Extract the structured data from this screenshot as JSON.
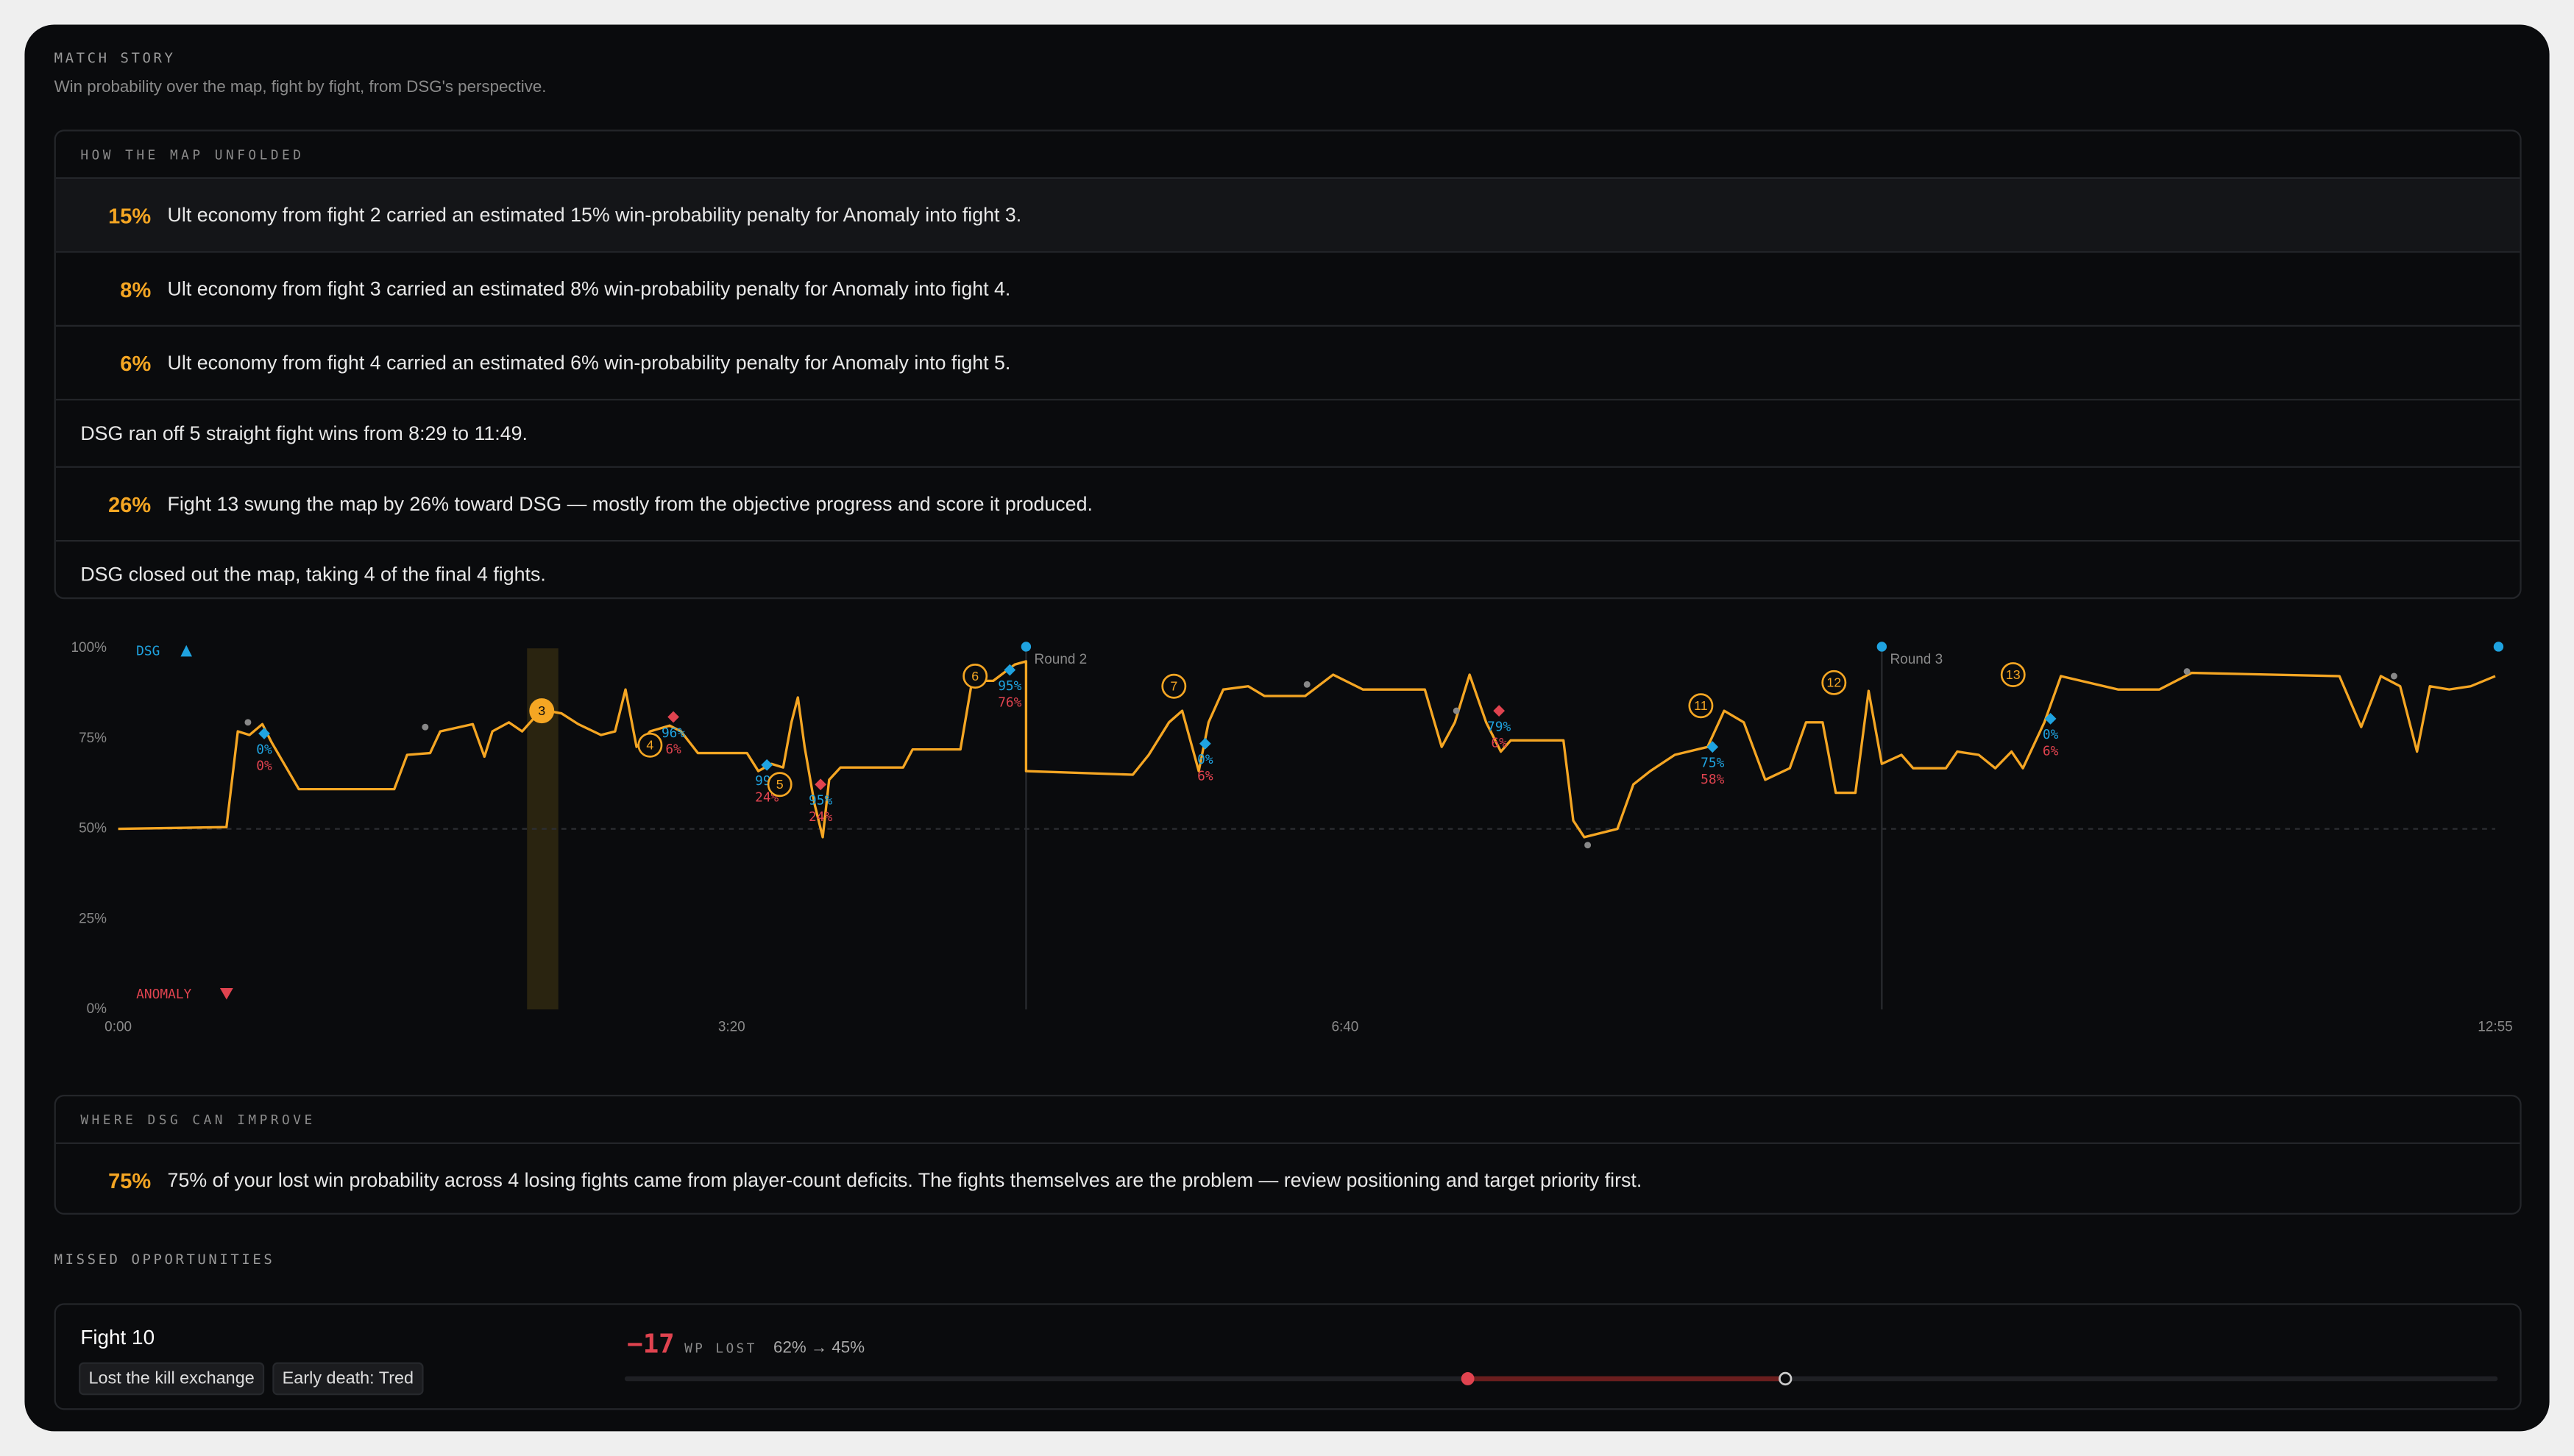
{
  "header": {
    "title": "MATCH STORY",
    "subtitle": "Win probability over the map, fight by fight, from DSG's perspective."
  },
  "unfolded": {
    "title": "HOW THE MAP UNFOLDED",
    "rows": [
      {
        "highlight": "15%",
        "text": "Ult economy from fight 2 carried an estimated 15% win-probability penalty for Anomaly into fight 3."
      },
      {
        "highlight": "8%",
        "text": "Ult economy from fight 3 carried an estimated 8% win-probability penalty for Anomaly into fight 4."
      },
      {
        "highlight": "6%",
        "text": "Ult economy from fight 4 carried an estimated 6% win-probability penalty for Anomaly into fight 5."
      },
      {
        "text": "DSG ran off 5 straight fight wins from 8:29 to 11:49."
      },
      {
        "highlight": "26%",
        "text": "Fight 13 swung the map by 26% toward DSG — mostly from the objective progress and score it produced."
      },
      {
        "text": "DSG closed out the map, taking 4 of the final 4 fights."
      }
    ]
  },
  "chart_data": {
    "type": "line",
    "legend_top": "DSG",
    "legend_bottom": "ANOMALY",
    "color": "#f5a623",
    "reference_line": 50,
    "xlim": [
      0,
      775
    ],
    "ylim": [
      0,
      100
    ],
    "xticks": [
      {
        "value": 0,
        "label": "0:00"
      },
      {
        "value": 200,
        "label": "3:20"
      },
      {
        "value": 400,
        "label": "6:40"
      },
      {
        "value": 775,
        "label": "12:55"
      }
    ],
    "yticks": [
      {
        "value": 0,
        "label": "0%"
      },
      {
        "value": 25,
        "label": "25%"
      },
      {
        "value": 50,
        "label": "50%"
      },
      {
        "value": 75,
        "label": "75%"
      },
      {
        "value": 100,
        "label": "100%"
      }
    ],
    "x": [
      0,
      35.3,
      39,
      42.8,
      47,
      50,
      58.9,
      90,
      94.2,
      101.7,
      105,
      115.6,
      119.4,
      122,
      127.4,
      131.7,
      138,
      144.5,
      150,
      157.4,
      162,
      165.4,
      169,
      173.4,
      179.8,
      183.5,
      189,
      205,
      208.7,
      213,
      216.8,
      219.5,
      221.6,
      223.8,
      227,
      229.7,
      231.8,
      235.5,
      255.9,
      259,
      274.6,
      278.4,
      285.3,
      292.3,
      296,
      296,
      330.8,
      336,
      342.6,
      346.9,
      352.3,
      355.5,
      360.3,
      368.4,
      373.7,
      387,
      396.1,
      405.8,
      426,
      431.5,
      435.8,
      440.6,
      446,
      450.8,
      454,
      471.2,
      474.4,
      478,
      488.8,
      494,
      499.5,
      507.5,
      518.2,
      523.6,
      530,
      537,
      545,
      550.3,
      555.7,
      560,
      566.4,
      570.7,
      575,
      581.4,
      585.2,
      595.9,
      599.6,
      606.6,
      612,
      617.3,
      621,
      628,
      633.4,
      652,
      665.5,
      676,
      724.2,
      731.3,
      737.7,
      744,
      749.5,
      753.7,
      760,
      767,
      775
    ],
    "values": [
      50,
      50.5,
      77,
      76,
      79,
      74,
      61,
      61,
      70.5,
      71,
      77,
      79,
      70,
      77,
      79.5,
      77,
      83,
      82,
      79,
      76,
      77,
      88.6,
      72.7,
      77,
      78.6,
      77,
      71,
      71,
      66,
      68,
      67,
      79.5,
      86.4,
      72.7,
      57,
      47.7,
      63.6,
      67,
      67,
      72,
      72,
      91,
      91,
      95.5,
      96.4,
      66,
      65,
      70.5,
      79.5,
      82.7,
      66,
      79.5,
      88.6,
      89.5,
      86.8,
      86.8,
      92.7,
      88.6,
      88.6,
      72.7,
      79.5,
      92.7,
      79.5,
      71.4,
      74.5,
      74.5,
      52.3,
      47.7,
      50,
      62.3,
      66,
      70.5,
      72.7,
      82.7,
      79.5,
      63.6,
      66.8,
      79.5,
      79.5,
      60,
      60,
      88.2,
      68,
      70.5,
      66.8,
      66.8,
      71.4,
      70.5,
      66.8,
      71.4,
      66.8,
      79.5,
      92.3,
      88.6,
      88.6,
      93.2,
      92.3,
      78.2,
      92.3,
      89.5,
      71.4,
      89.5,
      88.6,
      89.5,
      92.3
    ],
    "highlight_band": [
      133.3,
      143.5
    ],
    "rounds": [
      {
        "x": 296,
        "label": "Round 2"
      },
      {
        "x": 575,
        "label": "Round 3"
      }
    ],
    "minor_points": [
      {
        "x": 42.3,
        "y": 79.5
      },
      {
        "x": 100.1,
        "y": 78.2
      },
      {
        "x": 387.6,
        "y": 90
      },
      {
        "x": 436.3,
        "y": 82.7
      },
      {
        "x": 479.1,
        "y": 45.5
      },
      {
        "x": 674.5,
        "y": 93.6
      },
      {
        "x": 742,
        "y": 92.3
      }
    ],
    "fights": [
      {
        "label": "3",
        "x": 138.1,
        "y": 82.7,
        "active": true
      },
      {
        "label": "4",
        "x": 173.4,
        "y": 73.2
      },
      {
        "label": "5",
        "x": 215.7,
        "y": 62.3
      },
      {
        "label": "6",
        "x": 279.4,
        "y": 92.3
      },
      {
        "label": "7",
        "x": 344.2,
        "y": 89.5
      },
      {
        "label": "11",
        "x": 516,
        "y": 84.1
      },
      {
        "label": "12",
        "x": 559.4,
        "y": 90.5
      },
      {
        "label": "13",
        "x": 617.8,
        "y": 92.7
      }
    ],
    "events": [
      {
        "x": 47.6,
        "y": 76.4,
        "side": "dsg",
        "top": "0%",
        "bottom": "0%"
      },
      {
        "x": 181,
        "y": 81,
        "side": "anomaly",
        "top": "96%",
        "bottom": "6%"
      },
      {
        "x": 211.5,
        "y": 67.7,
        "side": "dsg",
        "top": "99%",
        "bottom": "24%"
      },
      {
        "x": 229,
        "y": 62.3,
        "side": "anomaly",
        "top": "95%",
        "bottom": "24%"
      },
      {
        "x": 290.7,
        "y": 94,
        "side": "dsg",
        "top": "95%",
        "bottom": "76%"
      },
      {
        "x": 354.4,
        "y": 73.6,
        "side": "dsg",
        "top": "0%",
        "bottom": "6%"
      },
      {
        "x": 450.2,
        "y": 82.7,
        "side": "anomaly",
        "top": "79%",
        "bottom": "6%"
      },
      {
        "x": 519.8,
        "y": 72.7,
        "side": "dsg",
        "top": "75%",
        "bottom": "58%"
      },
      {
        "x": 630,
        "y": 80.5,
        "side": "dsg",
        "top": "0%",
        "bottom": "6%"
      }
    ]
  },
  "improve": {
    "title": "WHERE DSG CAN IMPROVE",
    "highlight": "75%",
    "text": "75% of your lost win probability across 4 losing fights came from player-count deficits. The fights themselves are the problem — review positioning and target priority first."
  },
  "missed": {
    "title": "MISSED OPPORTUNITIES",
    "fight": "Fight 10",
    "tags": [
      "Lost the kill exchange",
      "Early death: Tred"
    ],
    "delta": "−17",
    "delta_label": "WP LOST",
    "range_label": "62% → 45%",
    "from": 62,
    "to": 45
  }
}
